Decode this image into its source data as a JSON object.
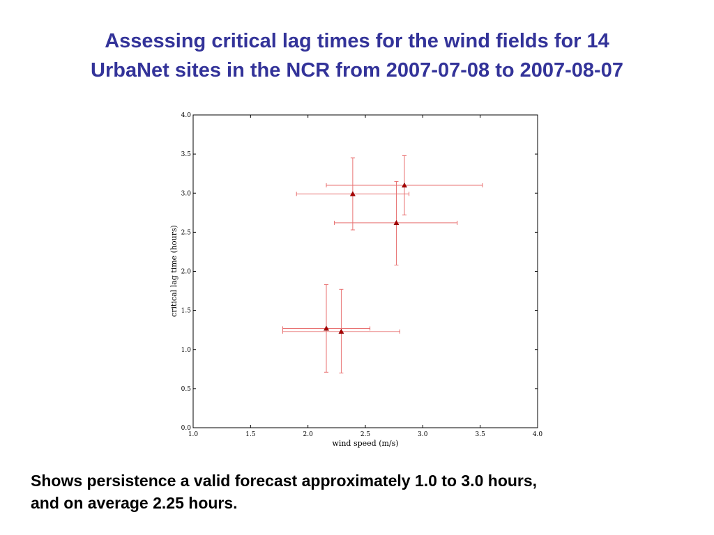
{
  "slide": {
    "title_lines": [
      "Assessing critical lag times for the wind fields for 14",
      "UrbaNet sites in the NCR from 2007-07-08 to 2007-08-07"
    ],
    "caption_lines": [
      "Shows persistence a valid forecast approximately 1.0 to 3.0 hours,",
      "and on average 2.25 hours."
    ],
    "colors": {
      "title": "#333399",
      "caption": "#000000"
    }
  },
  "chart_data": {
    "type": "scatter",
    "title": "",
    "xlabel": "wind speed (m/s)",
    "ylabel": "critical lag time (hours)",
    "xlim": [
      1.0,
      4.0
    ],
    "ylim": [
      0.0,
      4.0
    ],
    "xticks": [
      "1.0",
      "1.5",
      "2.0",
      "2.5",
      "3.0",
      "3.5",
      "4.0"
    ],
    "yticks": [
      "0.0",
      "0.5",
      "1.0",
      "1.5",
      "2.0",
      "2.5",
      "3.0",
      "3.5",
      "4.0"
    ],
    "grid": false,
    "marker": "triangle",
    "marker_color": "#aa0000",
    "errorbar_color": "#e87070",
    "points": [
      {
        "x": 2.39,
        "y": 2.99,
        "xerr": [
          1.9,
          2.88
        ],
        "yerr": [
          2.53,
          3.45
        ]
      },
      {
        "x": 2.84,
        "y": 3.1,
        "xerr": [
          2.16,
          3.52
        ],
        "yerr": [
          2.72,
          3.48
        ]
      },
      {
        "x": 2.77,
        "y": 2.62,
        "xerr": [
          2.23,
          3.3
        ],
        "yerr": [
          2.08,
          3.15
        ]
      },
      {
        "x": 2.16,
        "y": 1.27,
        "xerr": [
          1.78,
          2.54
        ],
        "yerr": [
          0.71,
          1.83
        ]
      },
      {
        "x": 2.29,
        "y": 1.23,
        "xerr": [
          1.78,
          2.8
        ],
        "yerr": [
          0.7,
          1.77
        ]
      }
    ]
  }
}
